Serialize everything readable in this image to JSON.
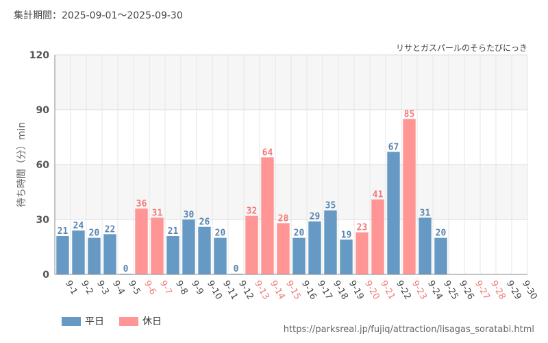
{
  "header": {
    "period": "集計期間：2025-09-01～2025-09-30"
  },
  "colors": {
    "weekday": "#6699c4",
    "holiday": "#ff9595",
    "weekday_label": "#5b85b0",
    "holiday_label": "#f07a7a"
  },
  "legend": {
    "weekday": "平日",
    "holiday": "休日"
  },
  "source": "https://parksreal.jp/fujiq/attraction/lisagas_soratabi.html",
  "chart_data": {
    "type": "bar",
    "title": "リサとガスパールのそらたびにっき",
    "xlabel": "",
    "ylabel": "待ち時間（分）min",
    "ylim": [
      0,
      120
    ],
    "yticks": [
      0,
      30,
      60,
      90,
      120
    ],
    "grid": true,
    "legend_position": "bottom-left",
    "categories": [
      "9-1",
      "9-2",
      "9-3",
      "9-4",
      "9-5",
      "9-6",
      "9-7",
      "9-8",
      "9-9",
      "9-10",
      "9-11",
      "9-12",
      "9-13",
      "9-14",
      "9-15",
      "9-16",
      "9-17",
      "9-18",
      "9-19",
      "9-20",
      "9-21",
      "9-22",
      "9-23",
      "9-24",
      "9-25",
      "9-26",
      "9-27",
      "9-28",
      "9-29",
      "9-30"
    ],
    "values": [
      21,
      24,
      20,
      22,
      0,
      36,
      31,
      21,
      30,
      26,
      20,
      0,
      32,
      64,
      28,
      20,
      29,
      35,
      19,
      23,
      41,
      67,
      85,
      31,
      20,
      null,
      null,
      null,
      null,
      null
    ],
    "day_type": [
      "weekday",
      "weekday",
      "weekday",
      "weekday",
      "weekday",
      "holiday",
      "holiday",
      "weekday",
      "weekday",
      "weekday",
      "weekday",
      "weekday",
      "holiday",
      "holiday",
      "holiday",
      "weekday",
      "weekday",
      "weekday",
      "weekday",
      "holiday",
      "holiday",
      "weekday",
      "holiday",
      "weekday",
      "weekday",
      "weekday",
      "holiday",
      "holiday",
      "weekday",
      "weekday"
    ]
  }
}
